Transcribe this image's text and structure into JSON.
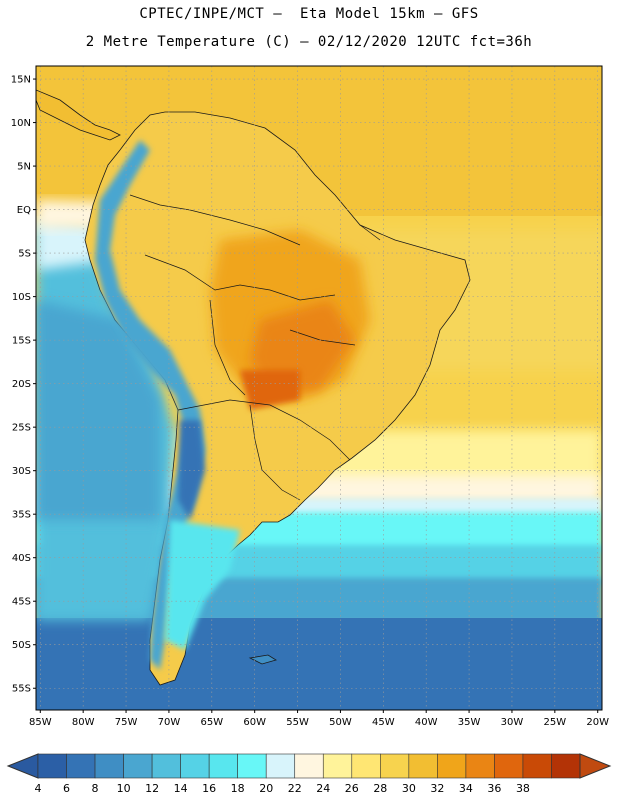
{
  "header": {
    "line1": "CPTEC/INPE/MCT –  Eta Model 15km – GFS",
    "line2": "2 Metre Temperature (C) – 02/12/2020 12UTC fct=36h"
  },
  "map": {
    "lat_labels": [
      "15N",
      "10N",
      "5N",
      "EQ",
      "5S",
      "10S",
      "15S",
      "20S",
      "25S",
      "30S",
      "35S",
      "40S",
      "45S",
      "50S",
      "55S"
    ],
    "lat_values": [
      15,
      10,
      5,
      0,
      -5,
      -10,
      -15,
      -20,
      -25,
      -30,
      -35,
      -40,
      -45,
      -50,
      -55
    ],
    "lon_labels": [
      "85W",
      "80W",
      "75W",
      "70W",
      "65W",
      "60W",
      "55W",
      "50W",
      "45W",
      "40W",
      "35W",
      "30W",
      "25W",
      "20W"
    ],
    "lon_values": [
      -85,
      -80,
      -75,
      -70,
      -65,
      -60,
      -55,
      -50,
      -45,
      -40,
      -35,
      -30,
      -25,
      -20
    ],
    "extent": {
      "lon_min": -85.5,
      "lon_max": -19.5,
      "lat_min": -57.5,
      "lat_max": 16.5
    }
  },
  "colorbar": {
    "levels": [
      "4",
      "6",
      "8",
      "10",
      "12",
      "14",
      "16",
      "18",
      "20",
      "22",
      "24",
      "26",
      "28",
      "30",
      "32",
      "34",
      "36",
      "38"
    ],
    "colors": [
      "#2b5fa6",
      "#3473b5",
      "#3f8ec4",
      "#4aa6d0",
      "#52bfdc",
      "#55d2e6",
      "#58e6ee",
      "#68f7f7",
      "#d8f4fb",
      "#fff6e0",
      "#fff39a",
      "#ffe673",
      "#f7d34e",
      "#f2be32",
      "#f0a51a",
      "#ea8514",
      "#e0660d",
      "#c94a06",
      "#b33306"
    ],
    "left_arrow_color": "#2a5aa0",
    "right_arrow_color": "#c04a10"
  }
}
